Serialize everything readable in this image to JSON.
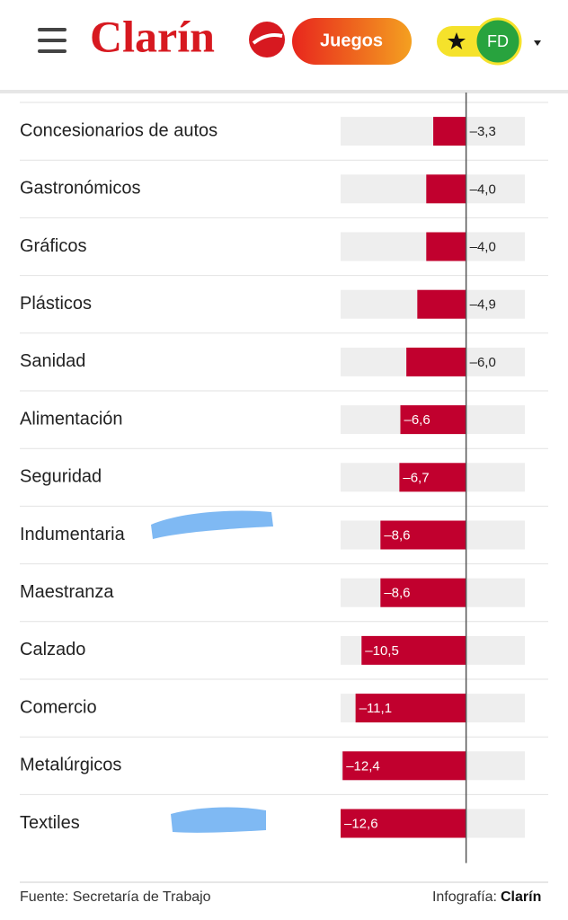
{
  "header": {
    "logo": "Clarín",
    "games_button": "Juegos",
    "user_initials": "FD"
  },
  "chart_data": {
    "type": "bar",
    "orientation": "horizontal",
    "categories": [
      "Concesionarios de autos",
      "Gastronómicos",
      "Gráficos",
      "Plásticos",
      "Sanidad",
      "Alimentación",
      "Seguridad",
      "Indumentaria",
      "Maestranza",
      "Calzado",
      "Comercio",
      "Metalúrgicos",
      "Textiles"
    ],
    "values": [
      -3.3,
      -4.0,
      -4.0,
      -4.9,
      -6.0,
      -6.6,
      -6.7,
      -8.6,
      -8.6,
      -10.5,
      -11.1,
      -12.4,
      -12.6
    ],
    "value_labels": [
      "–3,3",
      "–4,0",
      "–4,0",
      "–4,9",
      "–6,0",
      "–6,6",
      "–6,7",
      "–8,6",
      "–8,6",
      "–10,5",
      "–11,1",
      "–12,4",
      "–12,6"
    ],
    "color": "#c1002e",
    "xlim": [
      -12.6,
      5.9
    ]
  },
  "footer": {
    "source": "Fuente: Secretaría de Trabajo",
    "credit_label": "Infografía:",
    "credit_brand": "Clarín"
  }
}
